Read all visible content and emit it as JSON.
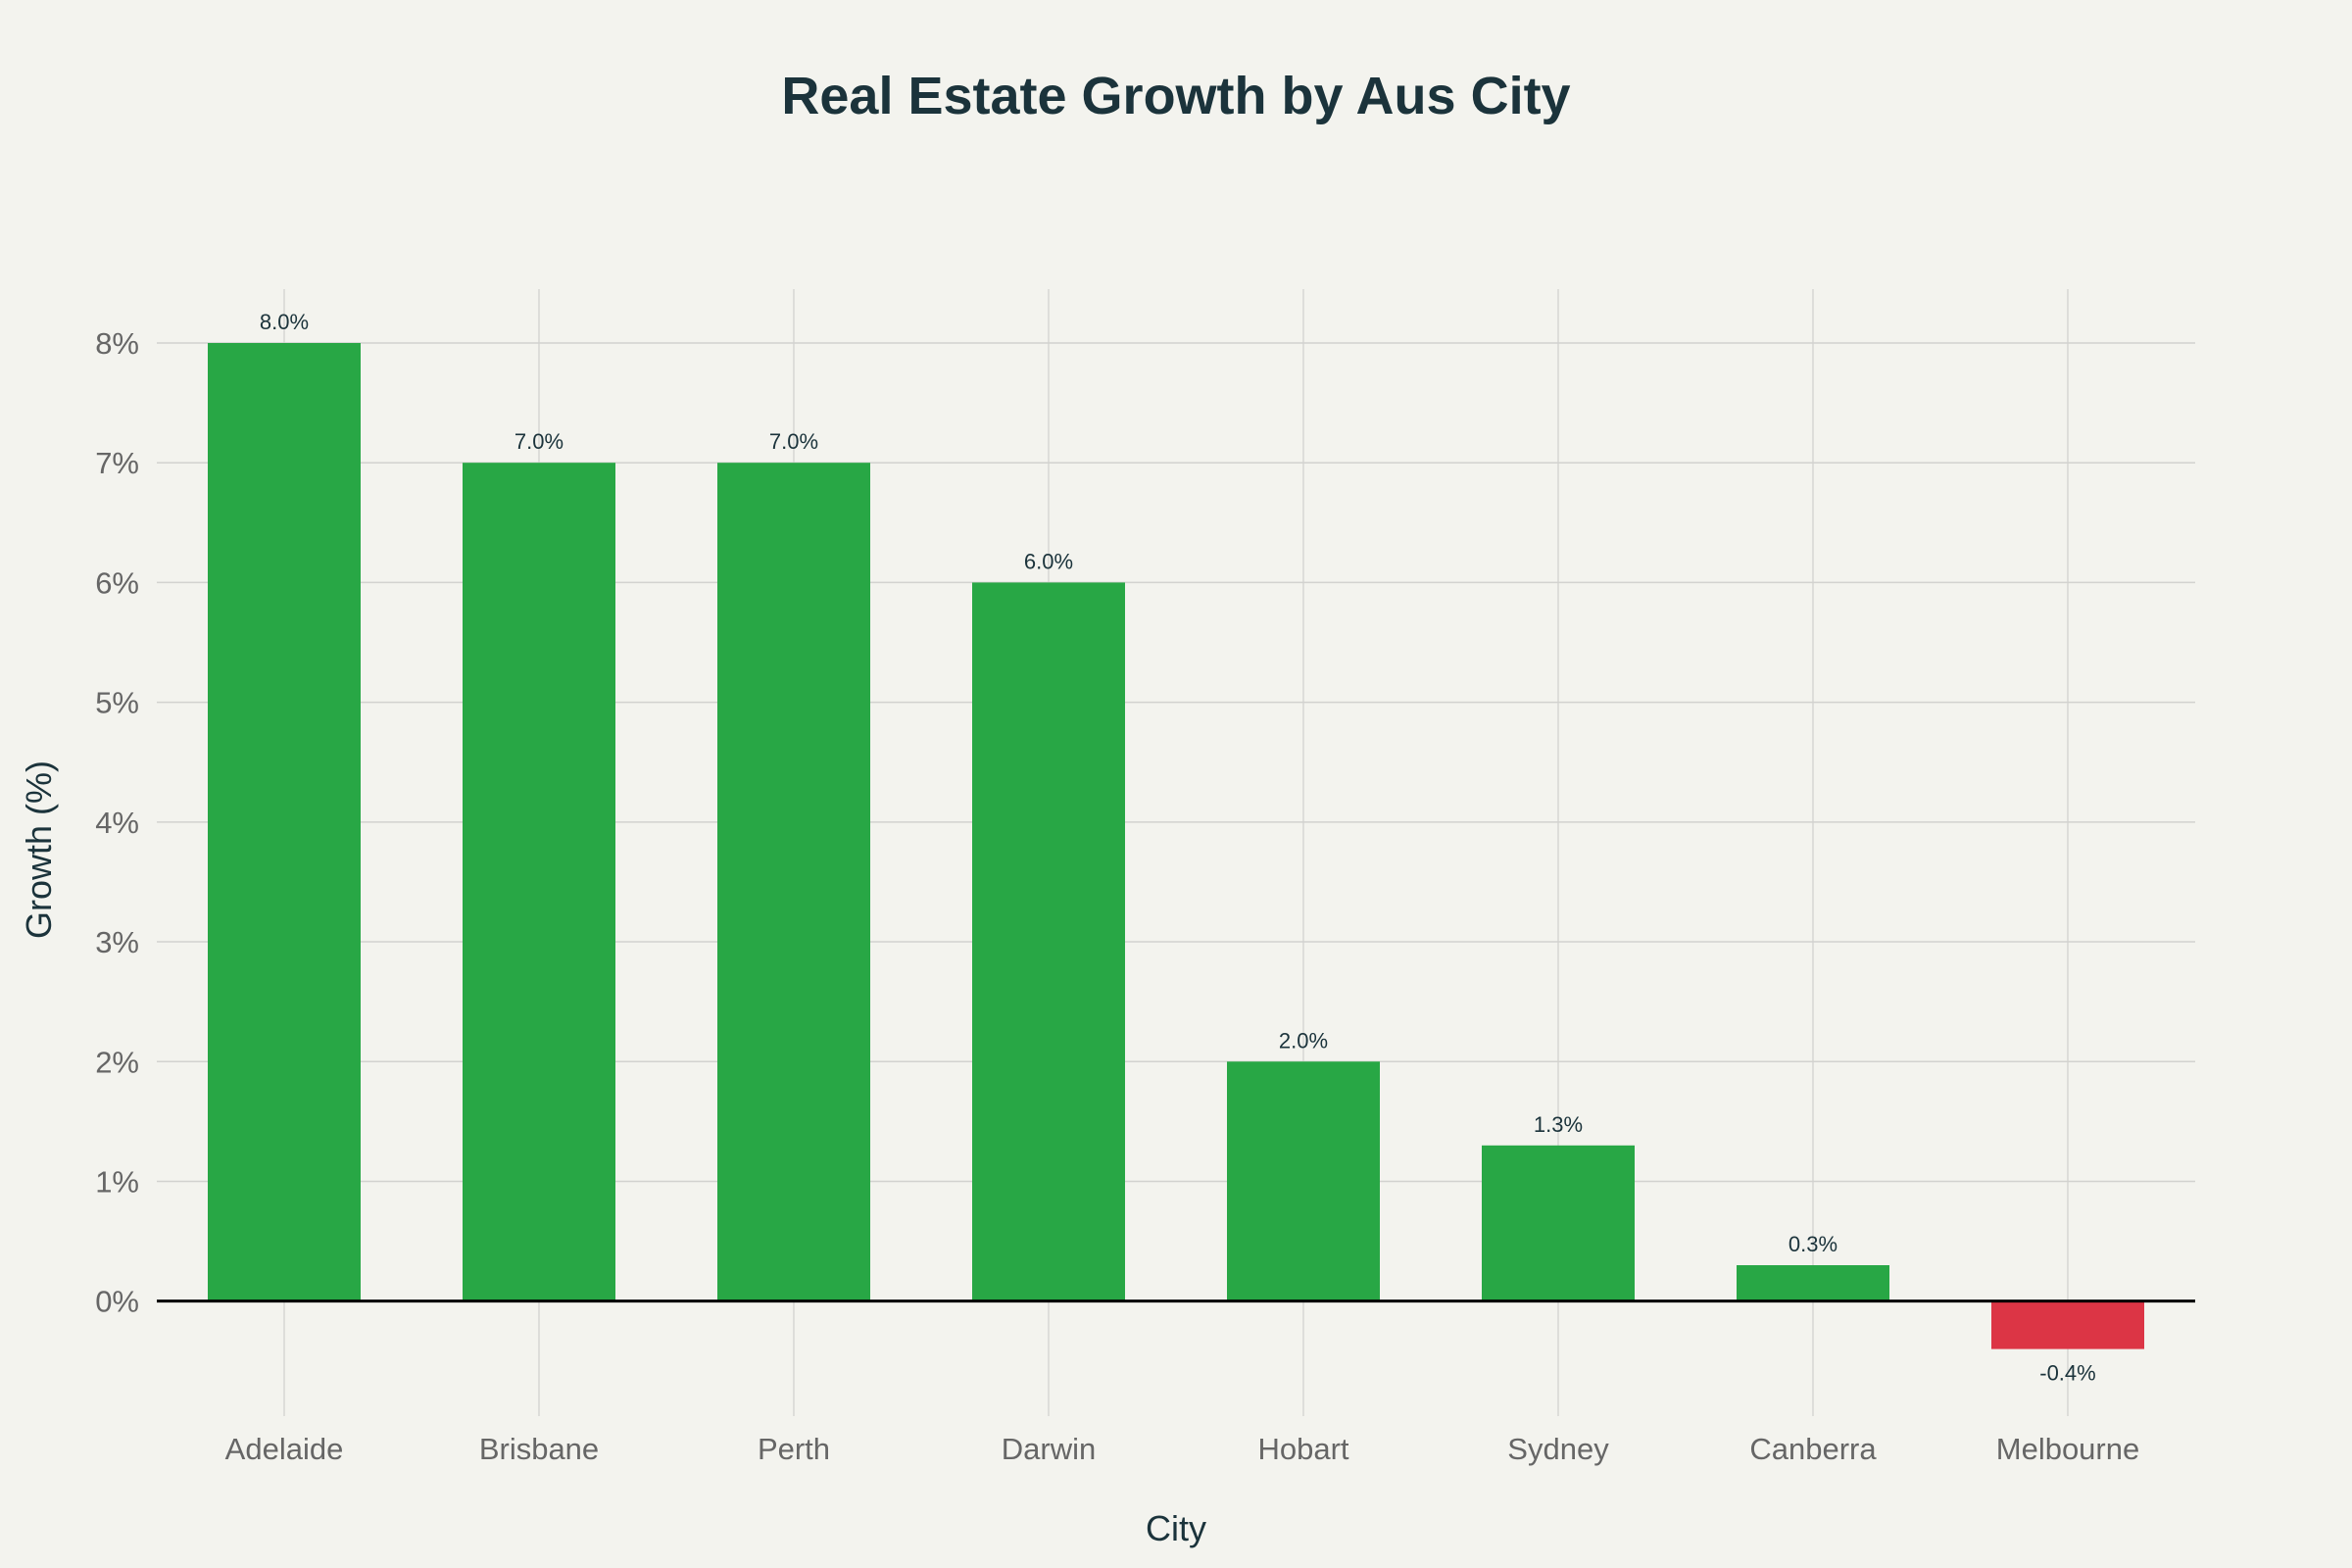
{
  "chart_data": {
    "type": "bar",
    "title": "Real Estate Growth by Aus City",
    "xlabel": "City",
    "ylabel": "Growth (%)",
    "categories": [
      "Adelaide",
      "Brisbane",
      "Perth",
      "Darwin",
      "Hobart",
      "Sydney",
      "Canberra",
      "Melbourne"
    ],
    "values": [
      8.0,
      7.0,
      7.0,
      6.0,
      2.0,
      1.3,
      0.3,
      -0.4
    ],
    "data_labels": [
      "8.0%",
      "7.0%",
      "7.0%",
      "6.0%",
      "2.0%",
      "1.3%",
      "0.3%",
      "-0.4%"
    ],
    "yticks": [
      0,
      1,
      2,
      3,
      4,
      5,
      6,
      7,
      8
    ],
    "ytick_labels": [
      "0%",
      "1%",
      "2%",
      "3%",
      "4%",
      "5%",
      "6%",
      "7%",
      "8%"
    ],
    "ylim": [
      -0.96,
      8.45
    ],
    "grid": true,
    "legend": "none",
    "colors": {
      "positive": "#28a745",
      "negative": "#dc3545",
      "background": "#f3f3ee",
      "title": "#1b333b"
    }
  }
}
